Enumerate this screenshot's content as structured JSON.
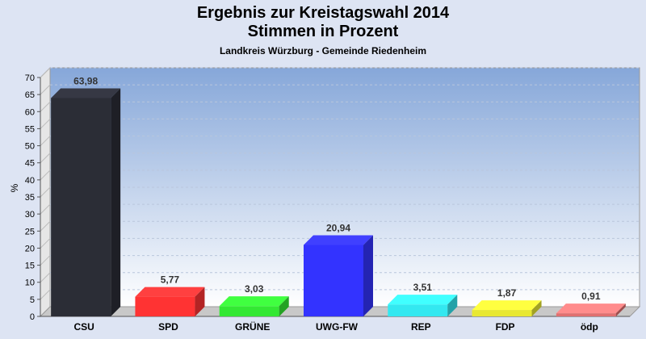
{
  "chart_data": {
    "type": "bar",
    "title": "Ergebnis zur Kreistagswahl 2014",
    "title2": "Stimmen in Prozent",
    "subtitle": "Landkreis Würzburg - Gemeinde Riedenheim",
    "ylabel": "%",
    "xlabel": "",
    "ylim": [
      0,
      70
    ],
    "yticks": [
      0,
      5,
      10,
      15,
      20,
      25,
      30,
      35,
      40,
      45,
      50,
      55,
      60,
      65,
      70
    ],
    "grid": true,
    "categories": [
      "CSU",
      "SPD",
      "GRÜNE",
      "UWG-FW",
      "REP",
      "FDP",
      "ödp"
    ],
    "values": [
      63.98,
      5.77,
      3.03,
      20.94,
      3.51,
      1.87,
      0.91
    ],
    "value_labels": [
      "63,98",
      "5,77",
      "3,03",
      "20,94",
      "3,51",
      "1,87",
      "0,91"
    ],
    "colors": [
      "#2b2d36",
      "#ff3333",
      "#33e833",
      "#3333ff",
      "#33e8f0",
      "#e8e833",
      "#e07070"
    ]
  }
}
